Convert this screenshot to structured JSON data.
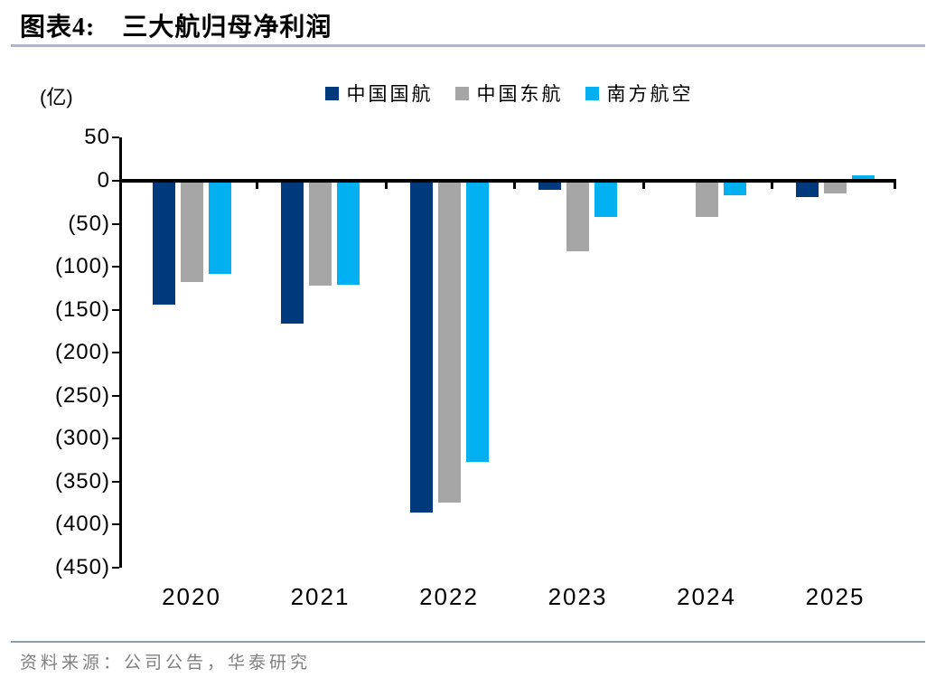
{
  "header": {
    "figure_label": "图表4:",
    "title": "三大航归母净利润"
  },
  "chart": {
    "unit_label": "(亿)"
  },
  "chart_data": {
    "type": "bar",
    "title": "三大航归母净利润",
    "unit": "亿",
    "categories": [
      "2020",
      "2021",
      "2022",
      "2023",
      "2024",
      "2025"
    ],
    "series": [
      {
        "name": "中国国航",
        "color": "#003a7d",
        "values": [
          -144,
          -166,
          -386,
          -11,
          -2,
          -19
        ]
      },
      {
        "name": "中国东航",
        "color": "#a6a6a6",
        "values": [
          -118,
          -122,
          -374,
          -82,
          -42,
          -15
        ]
      },
      {
        "name": "南方航空",
        "color": "#00b0f0",
        "values": [
          -108,
          -121,
          -327,
          -42,
          -17,
          6
        ]
      }
    ],
    "ylabel": "(亿)",
    "ylim": [
      -450,
      50
    ],
    "ytick_step": 50,
    "yticks": [
      "50",
      "0",
      "(50)",
      "(100)",
      "(150)",
      "(200)",
      "(250)",
      "(300)",
      "(350)",
      "(400)",
      "(450)"
    ],
    "negative_label_format": "parentheses",
    "legend_position": "top-center",
    "grid": false,
    "axis_color": "#000000"
  },
  "theme": {
    "title_underline_color": "#a6b8ce",
    "footer_divider_color": "#8a9cb0",
    "footer_text_color": "#7f7f7f"
  },
  "footer": {
    "source": "资料来源：公司公告，华泰研究"
  }
}
